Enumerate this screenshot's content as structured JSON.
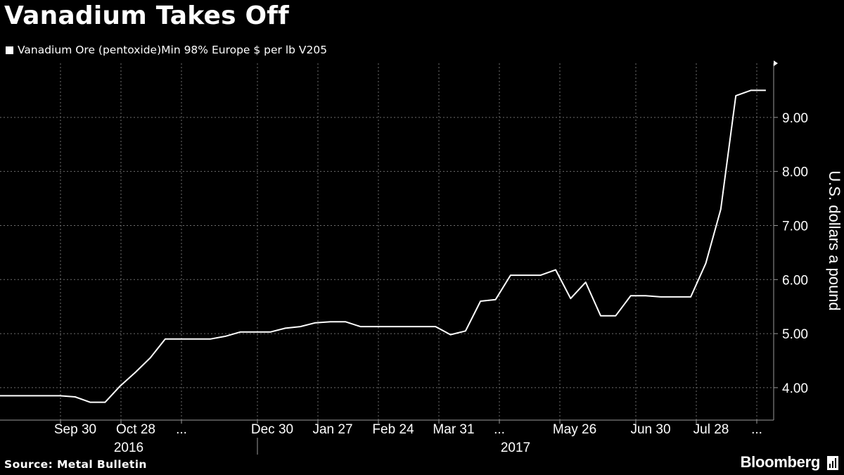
{
  "title": "Vanadium Takes Off",
  "source": "Source: Metal Bulletin",
  "brand": "Bloomberg",
  "colors": {
    "background": "#000000",
    "line": "#ffffff",
    "grid": "#6e6e6e",
    "text": "#ffffff"
  },
  "chart_data": {
    "type": "line",
    "x_ticks": [
      {
        "label": "Sep 30",
        "year": "2016"
      },
      {
        "label": "Oct 28",
        "year": "2016"
      },
      {
        "label": "...",
        "year": "2016"
      },
      {
        "label": "Dec 30",
        "year": "2016"
      },
      {
        "label": "Jan 27",
        "year": "2017"
      },
      {
        "label": "Feb 24",
        "year": "2017"
      },
      {
        "label": "Mar 31",
        "year": "2017"
      },
      {
        "label": "...",
        "year": "2017"
      },
      {
        "label": "May 26",
        "year": "2017"
      },
      {
        "label": "Jun 30",
        "year": "2017"
      },
      {
        "label": "Jul 28",
        "year": "2017"
      },
      {
        "label": "...",
        "year": "2017"
      }
    ],
    "year_labels": [
      "2016",
      "2017"
    ],
    "ylabel": "U.S. dollars a pound",
    "y_ticks": [
      "4.00",
      "5.00",
      "6.00",
      "7.00",
      "8.00",
      "9.00"
    ],
    "ylim": [
      3.4,
      10.0
    ],
    "grid": true,
    "series": [
      {
        "name": "Vanadium Ore (pentoxide)Min 98% Europe $ per lb V205",
        "points": [
          [
            "2016-08-26",
            3.85
          ],
          [
            "2016-09-02",
            3.85
          ],
          [
            "2016-09-09",
            3.85
          ],
          [
            "2016-09-16",
            3.85
          ],
          [
            "2016-09-23",
            3.85
          ],
          [
            "2016-09-30",
            3.83
          ],
          [
            "2016-10-07",
            3.73
          ],
          [
            "2016-10-14",
            3.73
          ],
          [
            "2016-10-21",
            4.03
          ],
          [
            "2016-10-28",
            4.28
          ],
          [
            "2016-11-04",
            4.55
          ],
          [
            "2016-11-11",
            4.9
          ],
          [
            "2016-11-18",
            4.9
          ],
          [
            "2016-11-25",
            4.9
          ],
          [
            "2016-12-02",
            4.9
          ],
          [
            "2016-12-09",
            4.95
          ],
          [
            "2016-12-16",
            5.03
          ],
          [
            "2016-12-23",
            5.03
          ],
          [
            "2016-12-30",
            5.03
          ],
          [
            "2017-01-06",
            5.1
          ],
          [
            "2017-01-13",
            5.13
          ],
          [
            "2017-01-20",
            5.2
          ],
          [
            "2017-01-27",
            5.22
          ],
          [
            "2017-02-03",
            5.22
          ],
          [
            "2017-02-10",
            5.13
          ],
          [
            "2017-02-17",
            5.13
          ],
          [
            "2017-02-24",
            5.13
          ],
          [
            "2017-03-03",
            5.13
          ],
          [
            "2017-03-10",
            5.13
          ],
          [
            "2017-03-17",
            5.13
          ],
          [
            "2017-03-24",
            4.98
          ],
          [
            "2017-03-31",
            5.05
          ],
          [
            "2017-04-07",
            5.6
          ],
          [
            "2017-04-14",
            5.63
          ],
          [
            "2017-04-21",
            6.08
          ],
          [
            "2017-04-28",
            6.08
          ],
          [
            "2017-05-05",
            6.08
          ],
          [
            "2017-05-12",
            6.18
          ],
          [
            "2017-05-19",
            5.65
          ],
          [
            "2017-05-26",
            5.95
          ],
          [
            "2017-06-02",
            5.33
          ],
          [
            "2017-06-09",
            5.33
          ],
          [
            "2017-06-16",
            5.7
          ],
          [
            "2017-06-23",
            5.7
          ],
          [
            "2017-06-30",
            5.68
          ],
          [
            "2017-07-07",
            5.68
          ],
          [
            "2017-07-14",
            5.68
          ],
          [
            "2017-07-21",
            6.3
          ],
          [
            "2017-07-28",
            7.3
          ],
          [
            "2017-08-04",
            9.4
          ],
          [
            "2017-08-11",
            9.5
          ],
          [
            "2017-08-18",
            9.5
          ]
        ]
      }
    ]
  }
}
